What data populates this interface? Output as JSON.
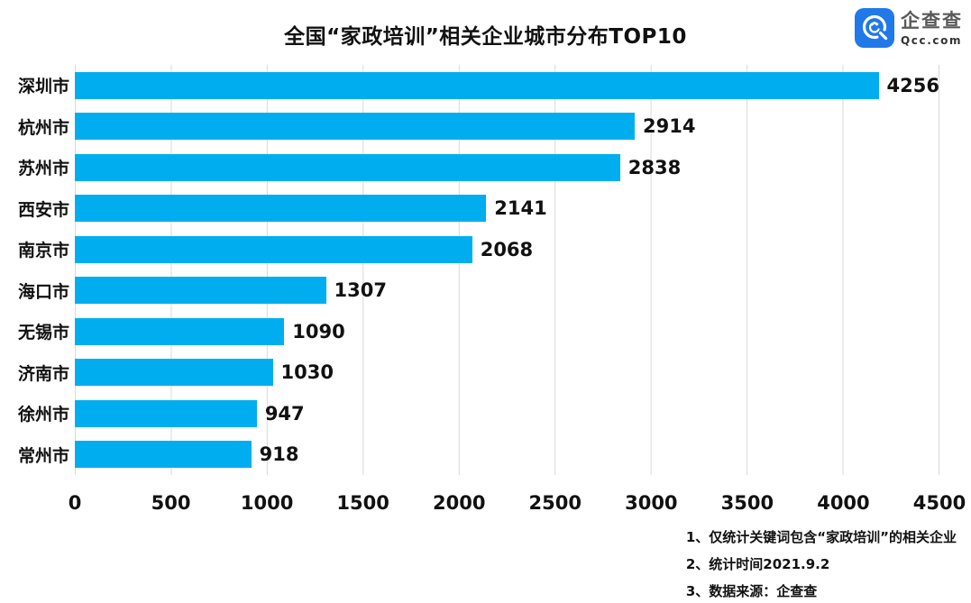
{
  "title": "全国“家政培训”相关企业城市分布TOP10",
  "logo": {
    "name": "企查查",
    "domain": "Qcc.com",
    "icon": "qcc-magnifier-icon",
    "icon_color": "#2079E8"
  },
  "chart_data": {
    "type": "bar",
    "orientation": "horizontal",
    "title": "全国“家政培训”相关企业城市分布TOP10",
    "categories": [
      "深圳市",
      "杭州市",
      "苏州市",
      "西安市",
      "南京市",
      "海口市",
      "无锡市",
      "济南市",
      "徐州市",
      "常州市"
    ],
    "values": [
      4256,
      2914,
      2838,
      2141,
      2068,
      1307,
      1090,
      1030,
      947,
      918
    ],
    "xlim": [
      0,
      4500
    ],
    "x_ticks": [
      "0",
      "500",
      "1000",
      "1500",
      "2000",
      "2500",
      "3000",
      "3500",
      "4000",
      "4500"
    ],
    "xlabel": "",
    "ylabel": "",
    "grid": "vertical",
    "bar_color": "#00AEEF",
    "grid_color": "#d9d9d9",
    "value_labels": "outside-end"
  },
  "footnotes": [
    "1、仅统计关键词包含“家政培训”的相关企业",
    "2、统计时间2021.9.2",
    "3、数据来源：企查查"
  ]
}
